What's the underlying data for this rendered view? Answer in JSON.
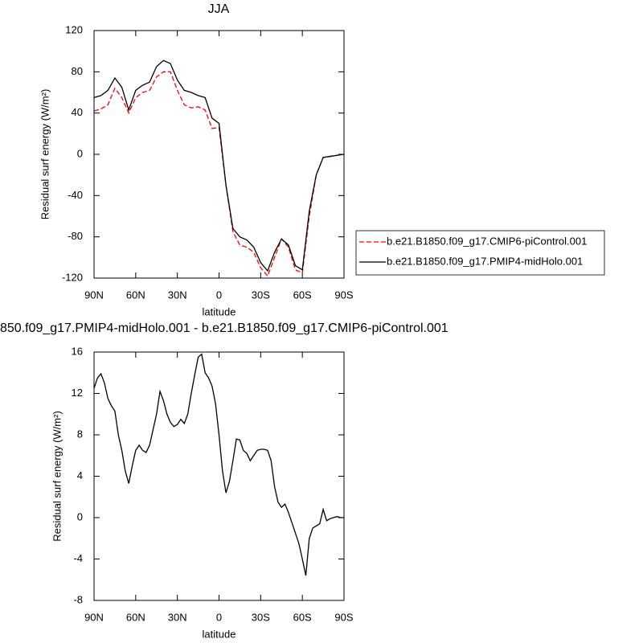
{
  "chart_data": [
    {
      "type": "line",
      "title": "JJA",
      "x_label": "latitude",
      "y_label": "Residual surf energy (W/m²)",
      "x": [
        90,
        85,
        80,
        75,
        70,
        65,
        60,
        55,
        50,
        45,
        40,
        35,
        30,
        25,
        20,
        15,
        10,
        5,
        0,
        -5,
        -10,
        -15,
        -20,
        -25,
        -30,
        -35,
        -40,
        -45,
        -50,
        -55,
        -60,
        -65,
        -70,
        -75,
        -80,
        -85,
        -90
      ],
      "series": [
        {
          "name": "b.e21.B1850.f09_g17.CMIP6-piControl.001",
          "color": "#ff0000",
          "line_style": "dashed",
          "values": [
            42,
            44,
            48,
            64,
            55,
            40,
            55,
            60,
            62,
            75,
            80,
            80,
            62,
            48,
            45,
            46,
            43,
            25,
            26,
            -30,
            -75,
            -88,
            -90,
            -95,
            -110,
            -118,
            -100,
            -82,
            -90,
            -112,
            -115,
            -60,
            -20,
            -3,
            -2,
            -1,
            0
          ]
        },
        {
          "name": "b.e21.B1850.f09_g17.PMIP4-midHolo.001",
          "color": "#000000",
          "line_style": "solid",
          "values": [
            55,
            57,
            62,
            74,
            65,
            43,
            62,
            67,
            70,
            85,
            91,
            88,
            72,
            62,
            60,
            57,
            55,
            35,
            30,
            -30,
            -72,
            -80,
            -83,
            -90,
            -105,
            -113,
            -95,
            -82,
            -88,
            -108,
            -112,
            -55,
            -20,
            -3,
            -2,
            -1,
            0
          ]
        }
      ],
      "xlim": [
        90,
        -90
      ],
      "xticks": [
        {
          "value": 90,
          "label": "90N"
        },
        {
          "value": 60,
          "label": "60N"
        },
        {
          "value": 30,
          "label": "30N"
        },
        0,
        {
          "value": -30,
          "label": "30S"
        },
        {
          "value": -60,
          "label": "60S"
        },
        {
          "value": -90,
          "label": "90S"
        }
      ],
      "ylim": [
        -120,
        120
      ],
      "yticks": [
        -120,
        -80,
        -40,
        0,
        40,
        80,
        120
      ],
      "legend": "right"
    },
    {
      "type": "line",
      "title": "850.f09_g17.PMIP4-midHolo.001 - b.e21.B1850.f09_g17.CMIP6-piControl.001",
      "x_label": "latitude",
      "y_label": "Residual surf energy (W/m²)",
      "x": [
        90,
        87.5,
        85,
        82.5,
        80,
        77.5,
        75,
        72.5,
        70,
        67.5,
        65,
        62.5,
        60,
        57.5,
        55,
        52.5,
        50,
        47.5,
        45,
        42.5,
        40,
        37.5,
        35,
        32.5,
        30,
        27.5,
        25,
        22.5,
        20,
        17.5,
        15,
        12.5,
        10,
        7.5,
        5,
        2.5,
        0,
        -2.5,
        -5,
        -7.5,
        -10,
        -12.5,
        -15,
        -17.5,
        -20,
        -22.5,
        -25,
        -27.5,
        -30,
        -32.5,
        -35,
        -37.5,
        -40,
        -42.5,
        -45,
        -47.5,
        -50,
        -52.5,
        -55,
        -57.5,
        -60,
        -62.5,
        -65,
        -67.5,
        -70,
        -72.5,
        -75,
        -77.5,
        -80,
        -82.5,
        -85,
        -87.5,
        -90
      ],
      "series": [
        {
          "name": null,
          "color": "#000000",
          "line_style": "solid",
          "values": [
            12.5,
            13.5,
            13.9,
            13,
            11.5,
            10.8,
            10.3,
            8,
            6.5,
            4.5,
            3.3,
            5,
            6.5,
            7,
            6.5,
            6.3,
            7,
            8.5,
            10,
            12.2,
            11.3,
            10,
            9.2,
            8.8,
            9,
            9.5,
            9.1,
            10,
            12,
            13.8,
            15.5,
            15.8,
            14,
            13.5,
            12.7,
            11,
            8,
            4.5,
            2.4,
            3.5,
            5.5,
            7.6,
            7.5,
            6.5,
            6.2,
            5.5,
            6,
            6.5,
            6.6,
            6.6,
            6.5,
            5.5,
            3,
            1.5,
            1,
            1.3,
            0.5,
            -0.5,
            -1.5,
            -2.5,
            -4,
            -5.6,
            -2,
            -1,
            -0.8,
            -0.6,
            0.8,
            -0.3,
            -0.1,
            0,
            0.1,
            0,
            0
          ]
        }
      ],
      "xlim": [
        90,
        -90
      ],
      "xticks": [
        {
          "value": 90,
          "label": "90N"
        },
        {
          "value": 60,
          "label": "60N"
        },
        {
          "value": 30,
          "label": "30N"
        },
        0,
        {
          "value": -30,
          "label": "30S"
        },
        {
          "value": -60,
          "label": "60S"
        },
        {
          "value": -90,
          "label": "90S"
        }
      ],
      "ylim": [
        -8,
        16
      ],
      "yticks": [
        -8,
        -4,
        0,
        4,
        8,
        12,
        16
      ]
    }
  ]
}
